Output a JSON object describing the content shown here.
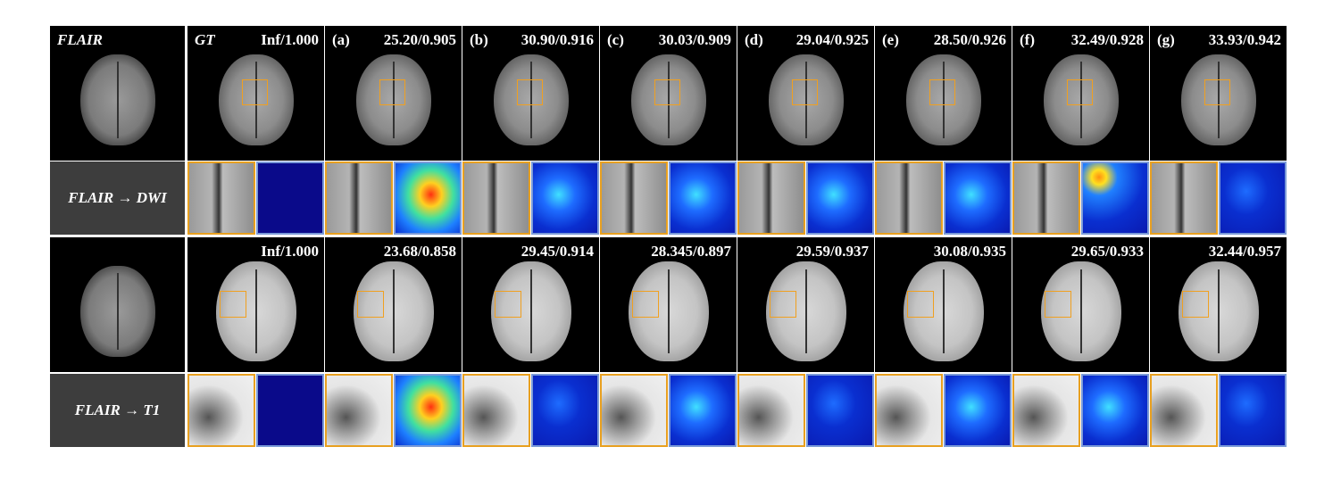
{
  "row1": {
    "input_label": "FLAIR",
    "panels": [
      {
        "left": "GT",
        "right": "Inf/1.000"
      },
      {
        "left": "(a)",
        "right": "25.20/0.905"
      },
      {
        "left": "(b)",
        "right": "30.90/0.916"
      },
      {
        "left": "(c)",
        "right": "30.03/0.909"
      },
      {
        "left": "(d)",
        "right": "29.04/0.925"
      },
      {
        "left": "(e)",
        "right": "28.50/0.926"
      },
      {
        "left": "(f)",
        "right": "32.49/0.928"
      },
      {
        "left": "(g)",
        "right": "33.93/0.942"
      }
    ]
  },
  "row2": {
    "task_label": "FLAIR → DWI"
  },
  "row3": {
    "panels": [
      {
        "right": "Inf/1.000"
      },
      {
        "right": "23.68/0.858"
      },
      {
        "right": "29.45/0.914"
      },
      {
        "right": "28.345/0.897"
      },
      {
        "right": "29.59/0.937"
      },
      {
        "right": "30.08/0.935"
      },
      {
        "right": "29.65/0.933"
      },
      {
        "right": "32.44/0.957"
      }
    ]
  },
  "row4": {
    "task_label": "FLAIR → T1"
  }
}
